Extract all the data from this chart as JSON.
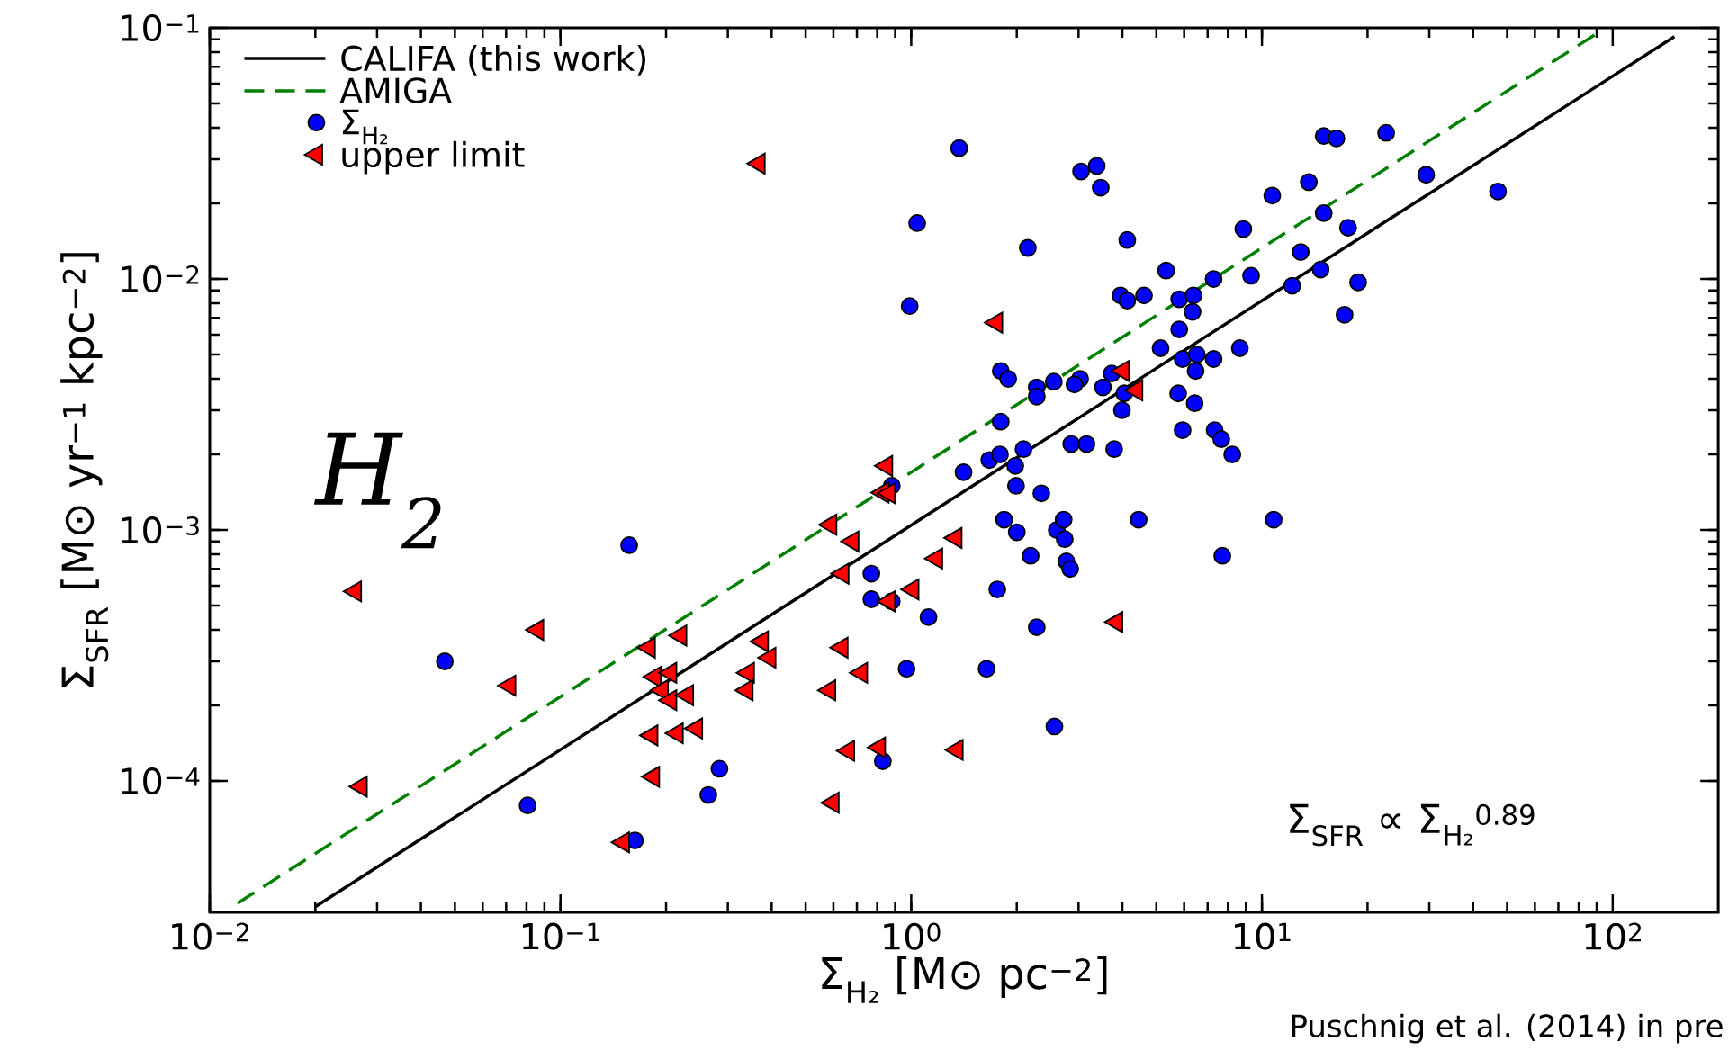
{
  "chart_data": {
    "type": "scatter",
    "xlabel": "Σ$_{H₂}$ [M⊙ pc$^{−2}$]",
    "ylabel": "Σ$_{SFR}$ [M⊙ yr$^{−1}$ kpc$^{−2}$]",
    "log": "xy",
    "legend": "top left",
    "xlim": [
      0.01,
      200
    ],
    "ylim": [
      3e-05,
      0.1
    ],
    "xticks": [
      {
        "value": 0.01,
        "label": "10$^{−2}$"
      },
      {
        "value": 0.1,
        "label": "10$^{−1}$"
      },
      {
        "value": 1,
        "label": "10$^{0}$"
      },
      {
        "value": 10,
        "label": "10$^{1}$"
      },
      {
        "value": 100,
        "label": "10$^{2}$"
      }
    ],
    "yticks": [
      {
        "value": 0.0001,
        "label": "10$^{−4}$"
      },
      {
        "value": 0.001,
        "label": "10$^{−3}$"
      },
      {
        "value": 0.01,
        "label": "10$^{−2}$"
      },
      {
        "value": 0.1,
        "label": "10$^{−1}$"
      }
    ],
    "annotations": [
      "H$_{2}$",
      "Σ$_{SFR}$  ∝  Σ$_{H₂}$$^{0.89}$",
      "Puschnig et al. (2014) in pre"
    ],
    "series": [
      {
        "name": "CALIFA (this work)",
        "type": "line",
        "color": "#000000",
        "marker": "none",
        "line_style": "solid",
        "x": [
          0.02,
          150
        ],
        "values": [
          3.16e-05,
          0.0923
        ]
      },
      {
        "name": "AMIGA",
        "type": "line",
        "color": "#008000",
        "marker": "none",
        "line_style": "dashed",
        "x": [
          0.012,
          90
        ],
        "values": [
          3.26e-05,
          0.0948
        ]
      },
      {
        "name": "Σ$_{H₂}$",
        "color": "#0000ff",
        "marker": "circle",
        "x": [
          1.37,
          1.04,
          0.99,
          2.15,
          3.05,
          3.38,
          3.47,
          4.13,
          5.33,
          3.95,
          4.13,
          4.61,
          5.81,
          6.38,
          6.34,
          7.28,
          9.31,
          8.85,
          10.7,
          13.6,
          15.0,
          16.3,
          22.6,
          29.4,
          47.1,
          15.0,
          17.6,
          12.9,
          12.2,
          14.7,
          18.8,
          17.2,
          8.65,
          5.14,
          5.81,
          5.94,
          6.52,
          6.47,
          7.28,
          5.77,
          6.43,
          5.94,
          7.33,
          7.66,
          8.23,
          7.71,
          10.8,
          4.45,
          3.79,
          3.99,
          3.52,
          3.73,
          4.05,
          1.8,
          1.89,
          2.28,
          2.28,
          2.55,
          3.03,
          2.92,
          1.8,
          2.86,
          3.16,
          1.67,
          1.79,
          2.09,
          1.98,
          1.99,
          1.41,
          2.35,
          1.84,
          2.0,
          2.6,
          2.72,
          2.74,
          2.77,
          2.84,
          2.19,
          1.76,
          1.12,
          0.77,
          0.77,
          0.88,
          2.28,
          0.97,
          1.64,
          2.56,
          0.83,
          0.88,
          0.157,
          0.0468,
          0.0806,
          0.163,
          0.284,
          0.264
        ],
        "values": [
          0.0332,
          0.0167,
          0.0078,
          0.0133,
          0.0268,
          0.0282,
          0.0231,
          0.0143,
          0.0108,
          0.0086,
          0.0082,
          0.0086,
          0.0083,
          0.0086,
          0.0074,
          0.01,
          0.0103,
          0.0158,
          0.0215,
          0.0243,
          0.0371,
          0.0363,
          0.0382,
          0.026,
          0.0223,
          0.0183,
          0.016,
          0.0128,
          0.0094,
          0.0109,
          0.0097,
          0.0072,
          0.0053,
          0.0053,
          0.0063,
          0.0048,
          0.005,
          0.0043,
          0.0048,
          0.0035,
          0.0032,
          0.0025,
          0.0025,
          0.0023,
          0.002,
          0.00079,
          0.0011,
          0.0011,
          0.0021,
          0.003,
          0.0037,
          0.0042,
          0.0035,
          0.0043,
          0.004,
          0.0037,
          0.0034,
          0.0039,
          0.004,
          0.0038,
          0.0027,
          0.0022,
          0.0022,
          0.0019,
          0.002,
          0.0021,
          0.0018,
          0.0015,
          0.0017,
          0.0014,
          0.0011,
          0.00098,
          0.001,
          0.0011,
          0.00092,
          0.00075,
          0.0007,
          0.00079,
          0.00058,
          0.00045,
          0.00067,
          0.00053,
          0.00052,
          0.00041,
          0.00028,
          0.00028,
          0.000165,
          0.00012,
          0.0015,
          0.00087,
          0.0003,
          8e-05,
          5.8e-05,
          0.000112,
          8.8e-05
        ]
      },
      {
        "name": "upper limit",
        "color": "#ff0000",
        "marker": "triangle",
        "x": [
          0.368,
          1.75,
          4.02,
          4.39,
          0.85,
          0.83,
          0.865,
          0.589,
          0.681,
          1.34,
          1.18,
          1.01,
          0.865,
          0.638,
          0.634,
          0.721,
          0.585,
          0.662,
          0.811,
          1.35,
          0.598,
          3.85,
          0.026,
          0.086,
          0.0716,
          0.027,
          0.179,
          0.22,
          0.186,
          0.206,
          0.195,
          0.206,
          0.23,
          0.182,
          0.215,
          0.244,
          0.184,
          0.151,
          0.376,
          0.395,
          0.343,
          0.34
        ],
        "values": [
          0.0288,
          0.0067,
          0.0043,
          0.0036,
          0.0018,
          0.00141,
          0.0014,
          0.00105,
          0.0009,
          0.00093,
          0.00077,
          0.00058,
          0.00052,
          0.00067,
          0.00034,
          0.00027,
          0.00023,
          0.000132,
          0.000136,
          0.000133,
          8.2e-05,
          0.00043,
          0.00057,
          0.0004,
          0.00024,
          9.5e-05,
          0.00034,
          0.00038,
          0.00026,
          0.00027,
          0.00023,
          0.00021,
          0.00022,
          0.000152,
          0.000155,
          0.000162,
          0.000104,
          5.7e-05,
          0.00036,
          0.00031,
          0.00027,
          0.00023
        ]
      }
    ]
  }
}
